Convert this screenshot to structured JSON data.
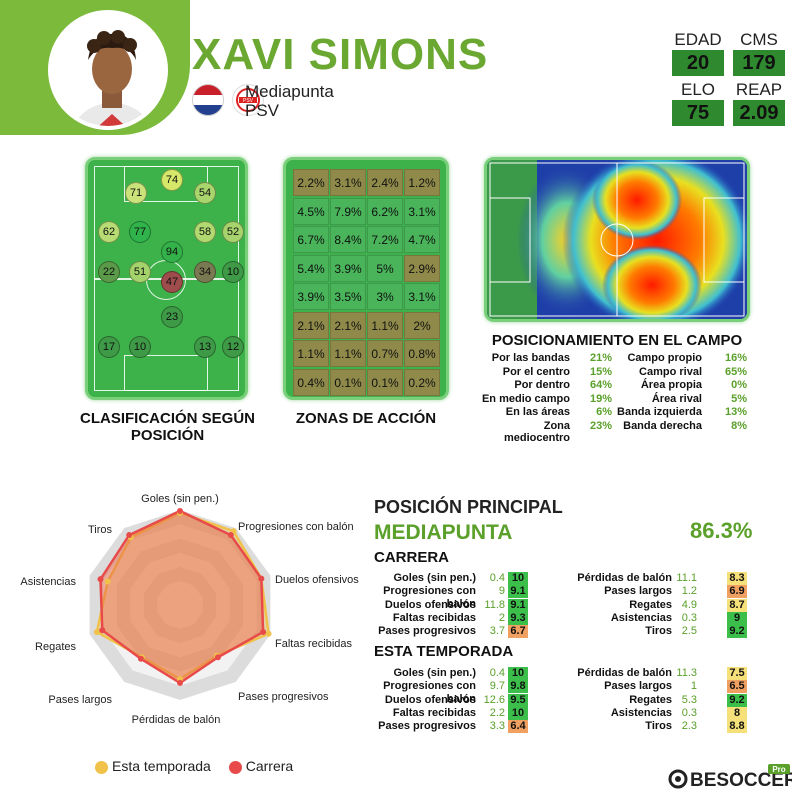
{
  "player": {
    "name": "XAVI SIMONS",
    "position": "Mediapunta",
    "club": "PSV",
    "stats": [
      {
        "label": "EDAD",
        "value": "20"
      },
      {
        "label": "CMS",
        "value": "179"
      },
      {
        "label": "ELO",
        "value": "75"
      },
      {
        "label": "REAP",
        "value": "2.09"
      }
    ]
  },
  "position_ratings": {
    "title": "CLASIFICACIÓN SEGÚN POSICIÓN",
    "dots": [
      {
        "v": "74",
        "c": "#d6e86a"
      },
      {
        "v": "71",
        "c": "#c9e27a"
      },
      {
        "v": "54",
        "c": "#a9d56d"
      },
      {
        "v": "62",
        "c": "#b7dc74"
      },
      {
        "v": "77",
        "c": "#2fb34a"
      },
      {
        "v": "58",
        "c": "#b1d970"
      },
      {
        "v": "52",
        "c": "#a6d36c"
      },
      {
        "v": "94",
        "c": "#34b24a"
      },
      {
        "v": "22",
        "c": "#5a9a48"
      },
      {
        "v": "51",
        "c": "#a5d36b"
      },
      {
        "v": "47",
        "c": "#9e4c4c"
      },
      {
        "v": "34",
        "c": "#7a7a52"
      },
      {
        "v": "10",
        "c": "#3e9a46"
      },
      {
        "v": "23",
        "c": "#3e9a46"
      },
      {
        "v": "17",
        "c": "#3e9a46"
      },
      {
        "v": "10",
        "c": "#3e9a46"
      },
      {
        "v": "13",
        "c": "#3e9a46"
      },
      {
        "v": "12",
        "c": "#3e9a46"
      }
    ]
  },
  "action_zones": {
    "title": "ZONAS DE ACCIÓN",
    "cells": [
      [
        "2.2%",
        "3.1%",
        "2.4%",
        "1.2%"
      ],
      [
        "4.5%",
        "7.9%",
        "6.2%",
        "3.1%"
      ],
      [
        "6.7%",
        "8.4%",
        "7.2%",
        "4.7%"
      ],
      [
        "5.4%",
        "3.9%",
        "5%",
        "2.9%"
      ],
      [
        "3.9%",
        "3.5%",
        "3%",
        "3.1%"
      ],
      [
        "2.1%",
        "2.1%",
        "1.1%",
        "2%"
      ],
      [
        "1.1%",
        "1.1%",
        "0.7%",
        "0.8%"
      ],
      [
        "0.4%",
        "0.1%",
        "0.1%",
        "0.2%"
      ]
    ],
    "colors": [
      [
        "#8f8a4a",
        "#8f8a4a",
        "#8f8a4a",
        "#8f8a4a"
      ],
      [
        "#49b45a",
        "#49b45a",
        "#49b45a",
        "#49b45a"
      ],
      [
        "#49b45a",
        "#49b45a",
        "#49b45a",
        "#49b45a"
      ],
      [
        "#49b45a",
        "#49b45a",
        "#49b45a",
        "#8f8a4a"
      ],
      [
        "#49b45a",
        "#49b45a",
        "#49b45a",
        "#49b45a"
      ],
      [
        "#8f8a4a",
        "#8f8a4a",
        "#8f8a4a",
        "#8f8a4a"
      ],
      [
        "#8f8a4a",
        "#8f8a4a",
        "#8f8a4a",
        "#8f8a4a"
      ],
      [
        "#8f8a4a",
        "#8f8a4a",
        "#8f8a4a",
        "#8f8a4a"
      ]
    ]
  },
  "field_position": {
    "title": "POSICIONAMIENTO EN EL CAMPO",
    "left": [
      {
        "label": "Por las bandas",
        "value": "21%"
      },
      {
        "label": "Por el centro",
        "value": "15%"
      },
      {
        "label": "Por dentro",
        "value": "64%"
      },
      {
        "label": "En medio campo",
        "value": "19%"
      },
      {
        "label": "En las áreas",
        "value": "6%"
      },
      {
        "label": "Zona mediocentro",
        "value": "23%"
      }
    ],
    "right": [
      {
        "label": "Campo propio",
        "value": "16%"
      },
      {
        "label": "Campo rival",
        "value": "65%"
      },
      {
        "label": "Área propia",
        "value": "0%"
      },
      {
        "label": "Área rival",
        "value": "5%"
      },
      {
        "label": "Banda izquierda",
        "value": "13%"
      },
      {
        "label": "Banda derecha",
        "value": "8%"
      }
    ]
  },
  "radar": {
    "axes": [
      "Goles (sin pen.)",
      "Progresiones con balón",
      "Duelos ofensivos",
      "Faltas recibidas",
      "Pases progresivos",
      "Pérdidas de balón",
      "Pases largos",
      "Regates",
      "Asistencias",
      "Tiros"
    ],
    "legend": [
      {
        "name": "Esta temporada",
        "color": "#f0c24a"
      },
      {
        "name": "Carrera",
        "color": "#e84a4a"
      }
    ]
  },
  "main_position": {
    "heading": "POSICIÓN PRINCIPAL",
    "name": "MEDIAPUNTA",
    "percent": "86.3%"
  },
  "career": {
    "title": "CARRERA",
    "left": [
      {
        "label": "Goles (sin pen.)",
        "value": "0.4",
        "score": "10",
        "color": "#3cbf4a"
      },
      {
        "label": "Progresiones con balón",
        "value": "9",
        "score": "9.1",
        "color": "#3cbf4a"
      },
      {
        "label": "Duelos ofensivos",
        "value": "11.8",
        "score": "9.1",
        "color": "#3cbf4a"
      },
      {
        "label": "Faltas recibidas",
        "value": "2",
        "score": "9.3",
        "color": "#3cbf4a"
      },
      {
        "label": "Pases progresivos",
        "value": "3.7",
        "score": "6.7",
        "color": "#f0a060"
      }
    ],
    "right": [
      {
        "label": "Pérdidas de balón",
        "value": "11.1",
        "score": "8.3",
        "color": "#f6e07a"
      },
      {
        "label": "Pases largos",
        "value": "1.2",
        "score": "6.9",
        "color": "#f0a060"
      },
      {
        "label": "Regates",
        "value": "4.9",
        "score": "8.7",
        "color": "#f6e07a"
      },
      {
        "label": "Asistencias",
        "value": "0.3",
        "score": "9",
        "color": "#3cbf4a"
      },
      {
        "label": "Tiros",
        "value": "2.5",
        "score": "9.2",
        "color": "#3cbf4a"
      }
    ]
  },
  "season": {
    "title": "ESTA TEMPORADA",
    "left": [
      {
        "label": "Goles (sin pen.)",
        "value": "0.4",
        "score": "10",
        "color": "#3cbf4a"
      },
      {
        "label": "Progresiones con balón",
        "value": "9.7",
        "score": "9.8",
        "color": "#3cbf4a"
      },
      {
        "label": "Duelos ofensivos",
        "value": "12.6",
        "score": "9.5",
        "color": "#3cbf4a"
      },
      {
        "label": "Faltas recibidas",
        "value": "2.2",
        "score": "10",
        "color": "#3cbf4a"
      },
      {
        "label": "Pases progresivos",
        "value": "3.3",
        "score": "6.4",
        "color": "#f0a060"
      }
    ],
    "right": [
      {
        "label": "Pérdidas de balón",
        "value": "11.3",
        "score": "7.5",
        "color": "#f6e07a"
      },
      {
        "label": "Pases largos",
        "value": "1",
        "score": "6.5",
        "color": "#f0a060"
      },
      {
        "label": "Regates",
        "value": "5.3",
        "score": "9.2",
        "color": "#3cbf4a"
      },
      {
        "label": "Asistencias",
        "value": "0.3",
        "score": "8",
        "color": "#f6e07a"
      },
      {
        "label": "Tiros",
        "value": "2.3",
        "score": "8.8",
        "color": "#f6e07a"
      }
    ]
  },
  "brand": {
    "name": "BESOCCER",
    "tag": "Pro"
  }
}
